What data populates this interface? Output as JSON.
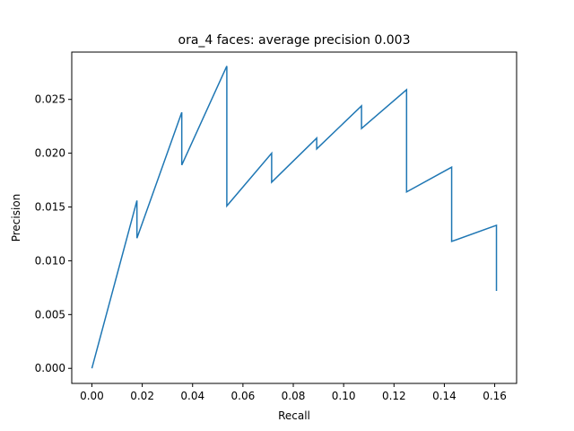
{
  "chart_data": {
    "type": "line",
    "title": "ora_4 faces: average precision 0.003",
    "xlabel": "Recall",
    "ylabel": "Precision",
    "xlim": [
      -0.008,
      0.1687
    ],
    "ylim": [
      -0.0014,
      0.0294
    ],
    "xticks": [
      {
        "value": 0.0,
        "label": "0.00"
      },
      {
        "value": 0.02,
        "label": "0.02"
      },
      {
        "value": 0.04,
        "label": "0.04"
      },
      {
        "value": 0.06,
        "label": "0.06"
      },
      {
        "value": 0.08,
        "label": "0.08"
      },
      {
        "value": 0.1,
        "label": "0.10"
      },
      {
        "value": 0.12,
        "label": "0.12"
      },
      {
        "value": 0.14,
        "label": "0.14"
      },
      {
        "value": 0.16,
        "label": "0.16"
      }
    ],
    "yticks": [
      {
        "value": 0.0,
        "label": "0.000"
      },
      {
        "value": 0.005,
        "label": "0.005"
      },
      {
        "value": 0.01,
        "label": "0.010"
      },
      {
        "value": 0.015,
        "label": "0.015"
      },
      {
        "value": 0.02,
        "label": "0.020"
      },
      {
        "value": 0.025,
        "label": "0.025"
      }
    ],
    "grid": false,
    "series": [
      {
        "color": "#1f77b4",
        "x": [
          0.0,
          0.0179,
          0.0179,
          0.0357,
          0.0357,
          0.0536,
          0.0536,
          0.0714,
          0.0714,
          0.0893,
          0.0893,
          0.1071,
          0.1071,
          0.125,
          0.125,
          0.1429,
          0.1429,
          0.1607,
          0.1607
        ],
        "y": [
          0.0,
          0.0156,
          0.0121,
          0.0238,
          0.0189,
          0.0281,
          0.0151,
          0.02,
          0.0173,
          0.0214,
          0.0204,
          0.0244,
          0.0223,
          0.0259,
          0.0164,
          0.0187,
          0.0118,
          0.0133,
          0.0072
        ]
      }
    ]
  }
}
